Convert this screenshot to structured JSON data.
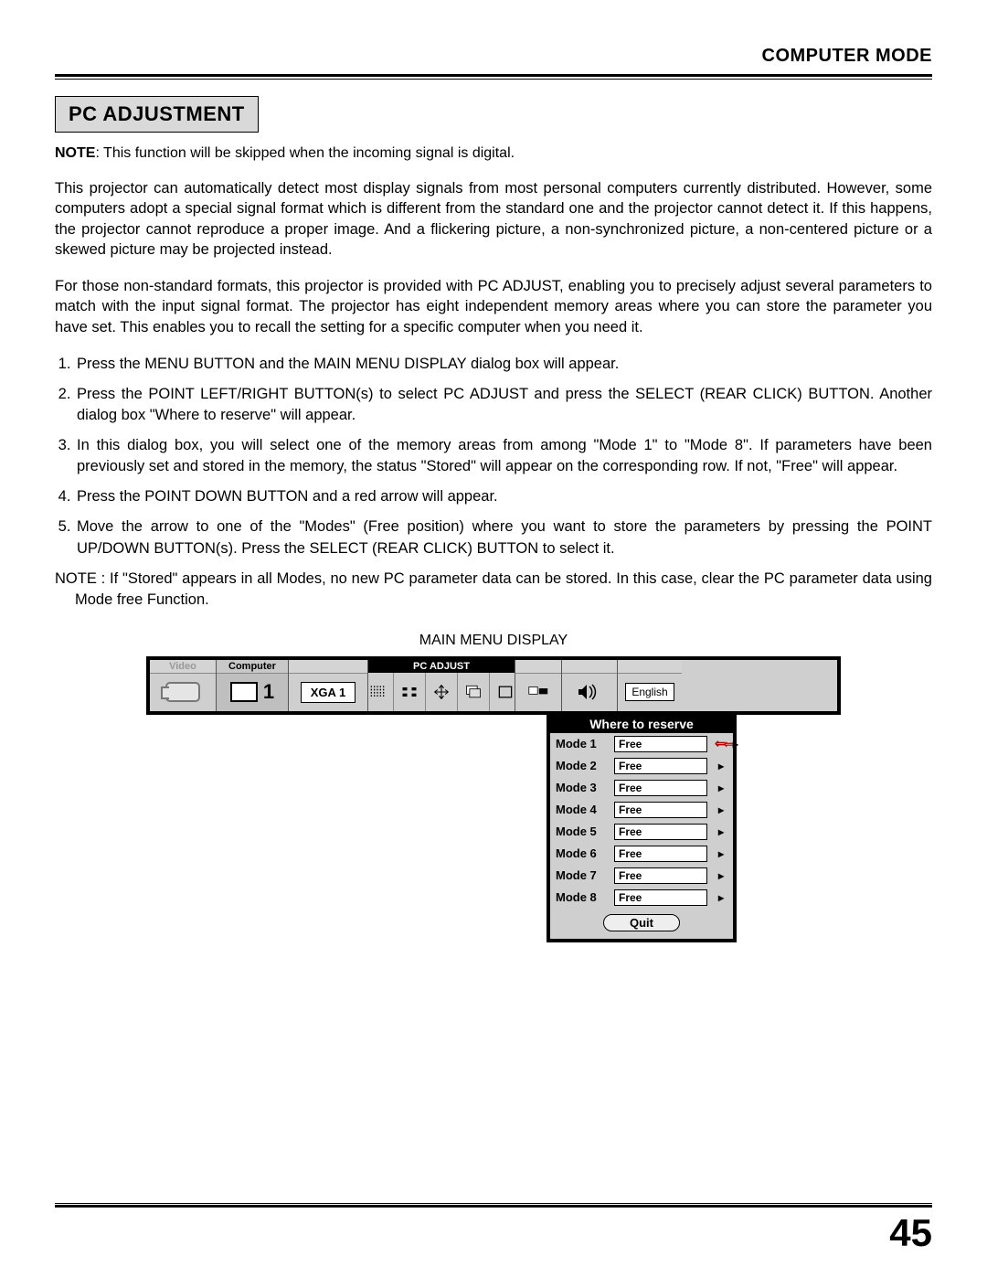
{
  "header": {
    "mode": "COMPUTER MODE"
  },
  "section": {
    "title": "PC ADJUSTMENT"
  },
  "note": {
    "label": "NOTE",
    "text": ": This function will be skipped when the incoming signal is digital."
  },
  "para1": "This projector can automatically detect most display signals from most personal computers currently distributed. However, some computers adopt a special signal format which is different from the standard one and the projector cannot detect it. If this happens, the projector cannot reproduce a proper image. And a flickering picture, a non-synchronized picture, a non-centered picture or a skewed picture may be projected instead.",
  "para2": "For those non-standard formats, this projector is provided with PC ADJUST, enabling you to precisely adjust several parameters to match with the input signal format. The projector has eight independent memory areas where you can store the parameter you have set. This enables you to recall the setting for a specific computer when you need it.",
  "steps": [
    "Press the MENU BUTTON and the MAIN MENU DISPLAY dialog box will appear.",
    "Press the POINT LEFT/RIGHT BUTTON(s) to select PC ADJUST and press the SELECT (REAR CLICK) BUTTON. Another dialog box \"Where to reserve\" will appear.",
    "In this dialog box, you will select one of the memory areas from among \"Mode 1\" to \"Mode 8\". If parameters have been previously set and stored in the memory, the status \"Stored\" will appear on the corresponding row. If not, \"Free\" will appear.",
    "Press the POINT DOWN BUTTON and a red arrow will appear.",
    "Move the arrow to one of the \"Modes\" (Free position) where you want to store the parameters by pressing the POINT UP/DOWN BUTTON(s). Press the SELECT (REAR CLICK) BUTTON to select it."
  ],
  "note2": "NOTE : If \"Stored\" appears in all Modes, no new PC parameter data can be stored. In this case, clear the PC parameter data using Mode free Function.",
  "diagram": {
    "caption": "MAIN MENU DISPLAY",
    "tabs": {
      "video": "Video",
      "computer": "Computer",
      "computer_num": "1"
    },
    "xga": "XGA 1",
    "pcadjust_label": "PC ADJUST",
    "language": "English",
    "dialog_title": "Where to reserve",
    "modes": [
      {
        "label": "Mode  1",
        "status": "Free",
        "selected": true
      },
      {
        "label": "Mode  2",
        "status": "Free",
        "selected": false
      },
      {
        "label": "Mode  3",
        "status": "Free",
        "selected": false
      },
      {
        "label": "Mode  4",
        "status": "Free",
        "selected": false
      },
      {
        "label": "Mode  5",
        "status": "Free",
        "selected": false
      },
      {
        "label": "Mode  6",
        "status": "Free",
        "selected": false
      },
      {
        "label": "Mode  7",
        "status": "Free",
        "selected": false
      },
      {
        "label": "Mode  8",
        "status": "Free",
        "selected": false
      }
    ],
    "quit": "Quit"
  },
  "page_number": "45"
}
